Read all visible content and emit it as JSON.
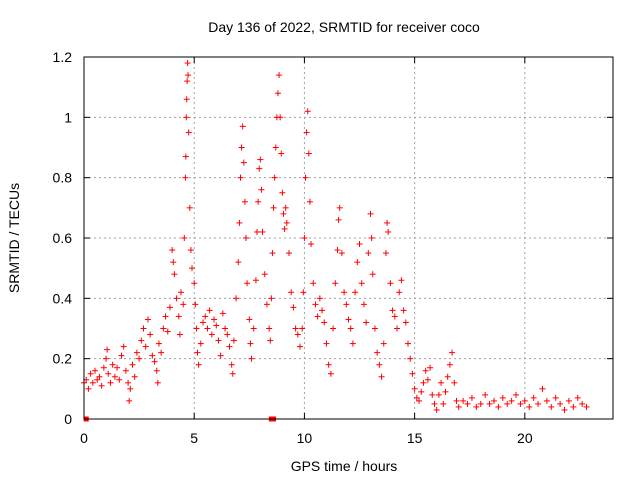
{
  "chart_data": {
    "type": "scatter",
    "title": "Day 136 of 2022, SRMTID for receiver coco",
    "xlabel": "GPS time / hours",
    "ylabel": "SRMTID / TECUs",
    "xlim": [
      0,
      24
    ],
    "ylim": [
      0,
      1.2
    ],
    "xticks": [
      0,
      5,
      10,
      15,
      20
    ],
    "xtick_labels": [
      "0",
      "5",
      "10",
      "15",
      "20"
    ],
    "yticks": [
      0,
      0.2,
      0.4,
      0.6,
      0.8,
      1,
      1.2
    ],
    "ytick_labels": [
      "0",
      "0.2",
      "0.4",
      "0.6",
      "0.8",
      "1",
      "1.2"
    ],
    "grid": true,
    "marker": "plus",
    "color": "#ff0000",
    "zero_markers": [
      [
        0.1,
        0.0
      ],
      [
        8.5,
        0.0
      ],
      [
        8.6,
        0.0
      ]
    ],
    "series": [
      {
        "name": "SRMTID",
        "points": [
          [
            0.0,
            0.12
          ],
          [
            0.1,
            0.13
          ],
          [
            0.2,
            0.1
          ],
          [
            0.3,
            0.15
          ],
          [
            0.4,
            0.12
          ],
          [
            0.5,
            0.16
          ],
          [
            0.6,
            0.13
          ],
          [
            0.7,
            0.14
          ],
          [
            0.8,
            0.11
          ],
          [
            0.9,
            0.17
          ],
          [
            1.0,
            0.2
          ],
          [
            1.05,
            0.23
          ],
          [
            1.1,
            0.15
          ],
          [
            1.2,
            0.12
          ],
          [
            1.3,
            0.18
          ],
          [
            1.4,
            0.14
          ],
          [
            1.5,
            0.17
          ],
          [
            1.6,
            0.13
          ],
          [
            1.7,
            0.21
          ],
          [
            1.8,
            0.24
          ],
          [
            1.9,
            0.16
          ],
          [
            2.0,
            0.12
          ],
          [
            2.05,
            0.06
          ],
          [
            2.1,
            0.1
          ],
          [
            2.2,
            0.18
          ],
          [
            2.3,
            0.14
          ],
          [
            2.4,
            0.22
          ],
          [
            2.5,
            0.2
          ],
          [
            2.6,
            0.26
          ],
          [
            2.7,
            0.3
          ],
          [
            2.8,
            0.24
          ],
          [
            2.9,
            0.33
          ],
          [
            3.0,
            0.28
          ],
          [
            3.1,
            0.21
          ],
          [
            3.2,
            0.19
          ],
          [
            3.3,
            0.16
          ],
          [
            3.35,
            0.12
          ],
          [
            3.4,
            0.25
          ],
          [
            3.5,
            0.22
          ],
          [
            3.6,
            0.3
          ],
          [
            3.7,
            0.34
          ],
          [
            3.8,
            0.29
          ],
          [
            3.9,
            0.37
          ],
          [
            4.0,
            0.56
          ],
          [
            4.05,
            0.52
          ],
          [
            4.1,
            0.48
          ],
          [
            4.2,
            0.4
          ],
          [
            4.3,
            0.34
          ],
          [
            4.35,
            0.28
          ],
          [
            4.4,
            0.42
          ],
          [
            4.5,
            0.38
          ],
          [
            4.55,
            0.6
          ],
          [
            4.6,
            0.8
          ],
          [
            4.62,
            0.87
          ],
          [
            4.64,
            1.0
          ],
          [
            4.66,
            1.06
          ],
          [
            4.68,
            1.12
          ],
          [
            4.7,
            1.18
          ],
          [
            4.72,
            1.14
          ],
          [
            4.75,
            0.95
          ],
          [
            4.8,
            0.7
          ],
          [
            4.85,
            0.56
          ],
          [
            4.9,
            0.5
          ],
          [
            5.0,
            0.45
          ],
          [
            5.05,
            0.38
          ],
          [
            5.1,
            0.3
          ],
          [
            5.15,
            0.22
          ],
          [
            5.2,
            0.18
          ],
          [
            5.3,
            0.25
          ],
          [
            5.4,
            0.32
          ],
          [
            5.5,
            0.34
          ],
          [
            5.6,
            0.3
          ],
          [
            5.7,
            0.36
          ],
          [
            5.8,
            0.28
          ],
          [
            5.9,
            0.33
          ],
          [
            6.0,
            0.31
          ],
          [
            6.1,
            0.26
          ],
          [
            6.2,
            0.21
          ],
          [
            6.3,
            0.35
          ],
          [
            6.4,
            0.3
          ],
          [
            6.5,
            0.28
          ],
          [
            6.6,
            0.24
          ],
          [
            6.7,
            0.18
          ],
          [
            6.75,
            0.15
          ],
          [
            6.8,
            0.26
          ],
          [
            6.9,
            0.4
          ],
          [
            7.0,
            0.52
          ],
          [
            7.05,
            0.65
          ],
          [
            7.1,
            0.8
          ],
          [
            7.15,
            0.9
          ],
          [
            7.2,
            0.97
          ],
          [
            7.25,
            0.85
          ],
          [
            7.3,
            0.72
          ],
          [
            7.35,
            0.6
          ],
          [
            7.4,
            0.45
          ],
          [
            7.5,
            0.33
          ],
          [
            7.55,
            0.25
          ],
          [
            7.6,
            0.2
          ],
          [
            7.7,
            0.3
          ],
          [
            7.8,
            0.46
          ],
          [
            7.85,
            0.62
          ],
          [
            7.9,
            0.72
          ],
          [
            7.95,
            0.83
          ],
          [
            8.0,
            0.86
          ],
          [
            8.05,
            0.76
          ],
          [
            8.1,
            0.62
          ],
          [
            8.2,
            0.48
          ],
          [
            8.3,
            0.38
          ],
          [
            8.4,
            0.3
          ],
          [
            8.45,
            0.26
          ],
          [
            8.5,
            0.4
          ],
          [
            8.55,
            0.55
          ],
          [
            8.6,
            0.7
          ],
          [
            8.65,
            0.8
          ],
          [
            8.7,
            0.9
          ],
          [
            8.75,
            1.0
          ],
          [
            8.8,
            1.08
          ],
          [
            8.85,
            1.14
          ],
          [
            8.9,
            1.0
          ],
          [
            8.95,
            0.88
          ],
          [
            9.0,
            0.75
          ],
          [
            9.05,
            0.68
          ],
          [
            9.1,
            0.63
          ],
          [
            9.15,
            0.7
          ],
          [
            9.2,
            0.65
          ],
          [
            9.3,
            0.55
          ],
          [
            9.4,
            0.42
          ],
          [
            9.5,
            0.37
          ],
          [
            9.6,
            0.3
          ],
          [
            9.7,
            0.28
          ],
          [
            9.8,
            0.24
          ],
          [
            9.9,
            0.3
          ],
          [
            9.95,
            0.42
          ],
          [
            10.0,
            0.6
          ],
          [
            10.05,
            0.8
          ],
          [
            10.1,
            0.95
          ],
          [
            10.15,
            1.02
          ],
          [
            10.2,
            0.88
          ],
          [
            10.25,
            0.72
          ],
          [
            10.3,
            0.58
          ],
          [
            10.4,
            0.45
          ],
          [
            10.5,
            0.38
          ],
          [
            10.6,
            0.34
          ],
          [
            10.7,
            0.4
          ],
          [
            10.8,
            0.36
          ],
          [
            10.9,
            0.32
          ],
          [
            11.0,
            0.25
          ],
          [
            11.1,
            0.18
          ],
          [
            11.2,
            0.15
          ],
          [
            11.3,
            0.3
          ],
          [
            11.4,
            0.45
          ],
          [
            11.5,
            0.56
          ],
          [
            11.55,
            0.66
          ],
          [
            11.6,
            0.7
          ],
          [
            11.7,
            0.55
          ],
          [
            11.8,
            0.42
          ],
          [
            11.9,
            0.38
          ],
          [
            12.0,
            0.33
          ],
          [
            12.1,
            0.3
          ],
          [
            12.2,
            0.25
          ],
          [
            12.3,
            0.42
          ],
          [
            12.4,
            0.52
          ],
          [
            12.5,
            0.58
          ],
          [
            12.6,
            0.45
          ],
          [
            12.7,
            0.38
          ],
          [
            12.8,
            0.32
          ],
          [
            12.9,
            0.55
          ],
          [
            13.0,
            0.68
          ],
          [
            13.05,
            0.6
          ],
          [
            13.1,
            0.48
          ],
          [
            13.2,
            0.3
          ],
          [
            13.3,
            0.22
          ],
          [
            13.4,
            0.18
          ],
          [
            13.5,
            0.14
          ],
          [
            13.6,
            0.25
          ],
          [
            13.7,
            0.55
          ],
          [
            13.75,
            0.65
          ],
          [
            13.8,
            0.62
          ],
          [
            13.9,
            0.45
          ],
          [
            14.0,
            0.36
          ],
          [
            14.1,
            0.34
          ],
          [
            14.2,
            0.3
          ],
          [
            14.3,
            0.42
          ],
          [
            14.4,
            0.46
          ],
          [
            14.5,
            0.36
          ],
          [
            14.6,
            0.32
          ],
          [
            14.7,
            0.25
          ],
          [
            14.8,
            0.2
          ],
          [
            14.9,
            0.15
          ],
          [
            15.0,
            0.1
          ],
          [
            15.1,
            0.07
          ],
          [
            15.2,
            0.06
          ],
          [
            15.3,
            0.09
          ],
          [
            15.4,
            0.12
          ],
          [
            15.5,
            0.16
          ],
          [
            15.6,
            0.13
          ],
          [
            15.7,
            0.17
          ],
          [
            15.8,
            0.08
          ],
          [
            15.9,
            0.05
          ],
          [
            16.0,
            0.03
          ],
          [
            16.1,
            0.08
          ],
          [
            16.2,
            0.12
          ],
          [
            16.3,
            0.05
          ],
          [
            16.4,
            0.09
          ],
          [
            16.5,
            0.14
          ],
          [
            16.6,
            0.18
          ],
          [
            16.7,
            0.22
          ],
          [
            16.8,
            0.12
          ],
          [
            16.9,
            0.06
          ],
          [
            17.0,
            0.04
          ],
          [
            17.2,
            0.06
          ],
          [
            17.4,
            0.05
          ],
          [
            17.6,
            0.07
          ],
          [
            17.8,
            0.04
          ],
          [
            18.0,
            0.05
          ],
          [
            18.2,
            0.08
          ],
          [
            18.4,
            0.05
          ],
          [
            18.6,
            0.06
          ],
          [
            18.8,
            0.04
          ],
          [
            19.0,
            0.07
          ],
          [
            19.2,
            0.05
          ],
          [
            19.4,
            0.06
          ],
          [
            19.6,
            0.08
          ],
          [
            19.8,
            0.05
          ],
          [
            20.0,
            0.06
          ],
          [
            20.2,
            0.04
          ],
          [
            20.4,
            0.07
          ],
          [
            20.6,
            0.05
          ],
          [
            20.8,
            0.1
          ],
          [
            21.0,
            0.06
          ],
          [
            21.2,
            0.04
          ],
          [
            21.4,
            0.07
          ],
          [
            21.6,
            0.05
          ],
          [
            21.8,
            0.03
          ],
          [
            22.0,
            0.06
          ],
          [
            22.2,
            0.04
          ],
          [
            22.4,
            0.07
          ],
          [
            22.6,
            0.05
          ],
          [
            22.8,
            0.04
          ]
        ]
      }
    ]
  }
}
